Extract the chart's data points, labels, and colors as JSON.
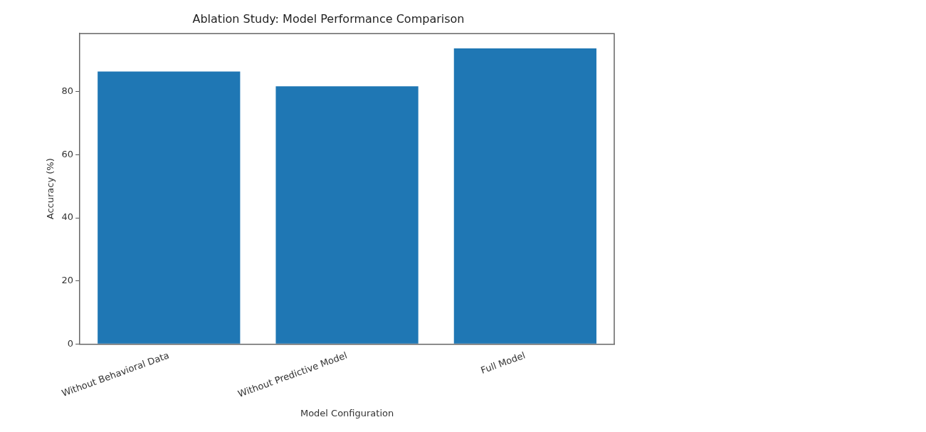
{
  "chart_data": {
    "type": "bar",
    "title": "Ablation Study: Model Performance Comparison",
    "xlabel": "Model Configuration",
    "ylabel": "Accuracy (%)",
    "categories": [
      "Without Behavioral Data",
      "Without Predictive Model",
      "Full Model"
    ],
    "values": [
      86.4,
      81.7,
      93.7
    ],
    "color": "#1f77b4",
    "ylim": [
      0,
      98.4
    ],
    "yticks": [
      0,
      20,
      40,
      60,
      80
    ],
    "grid": false,
    "legend": false
  }
}
